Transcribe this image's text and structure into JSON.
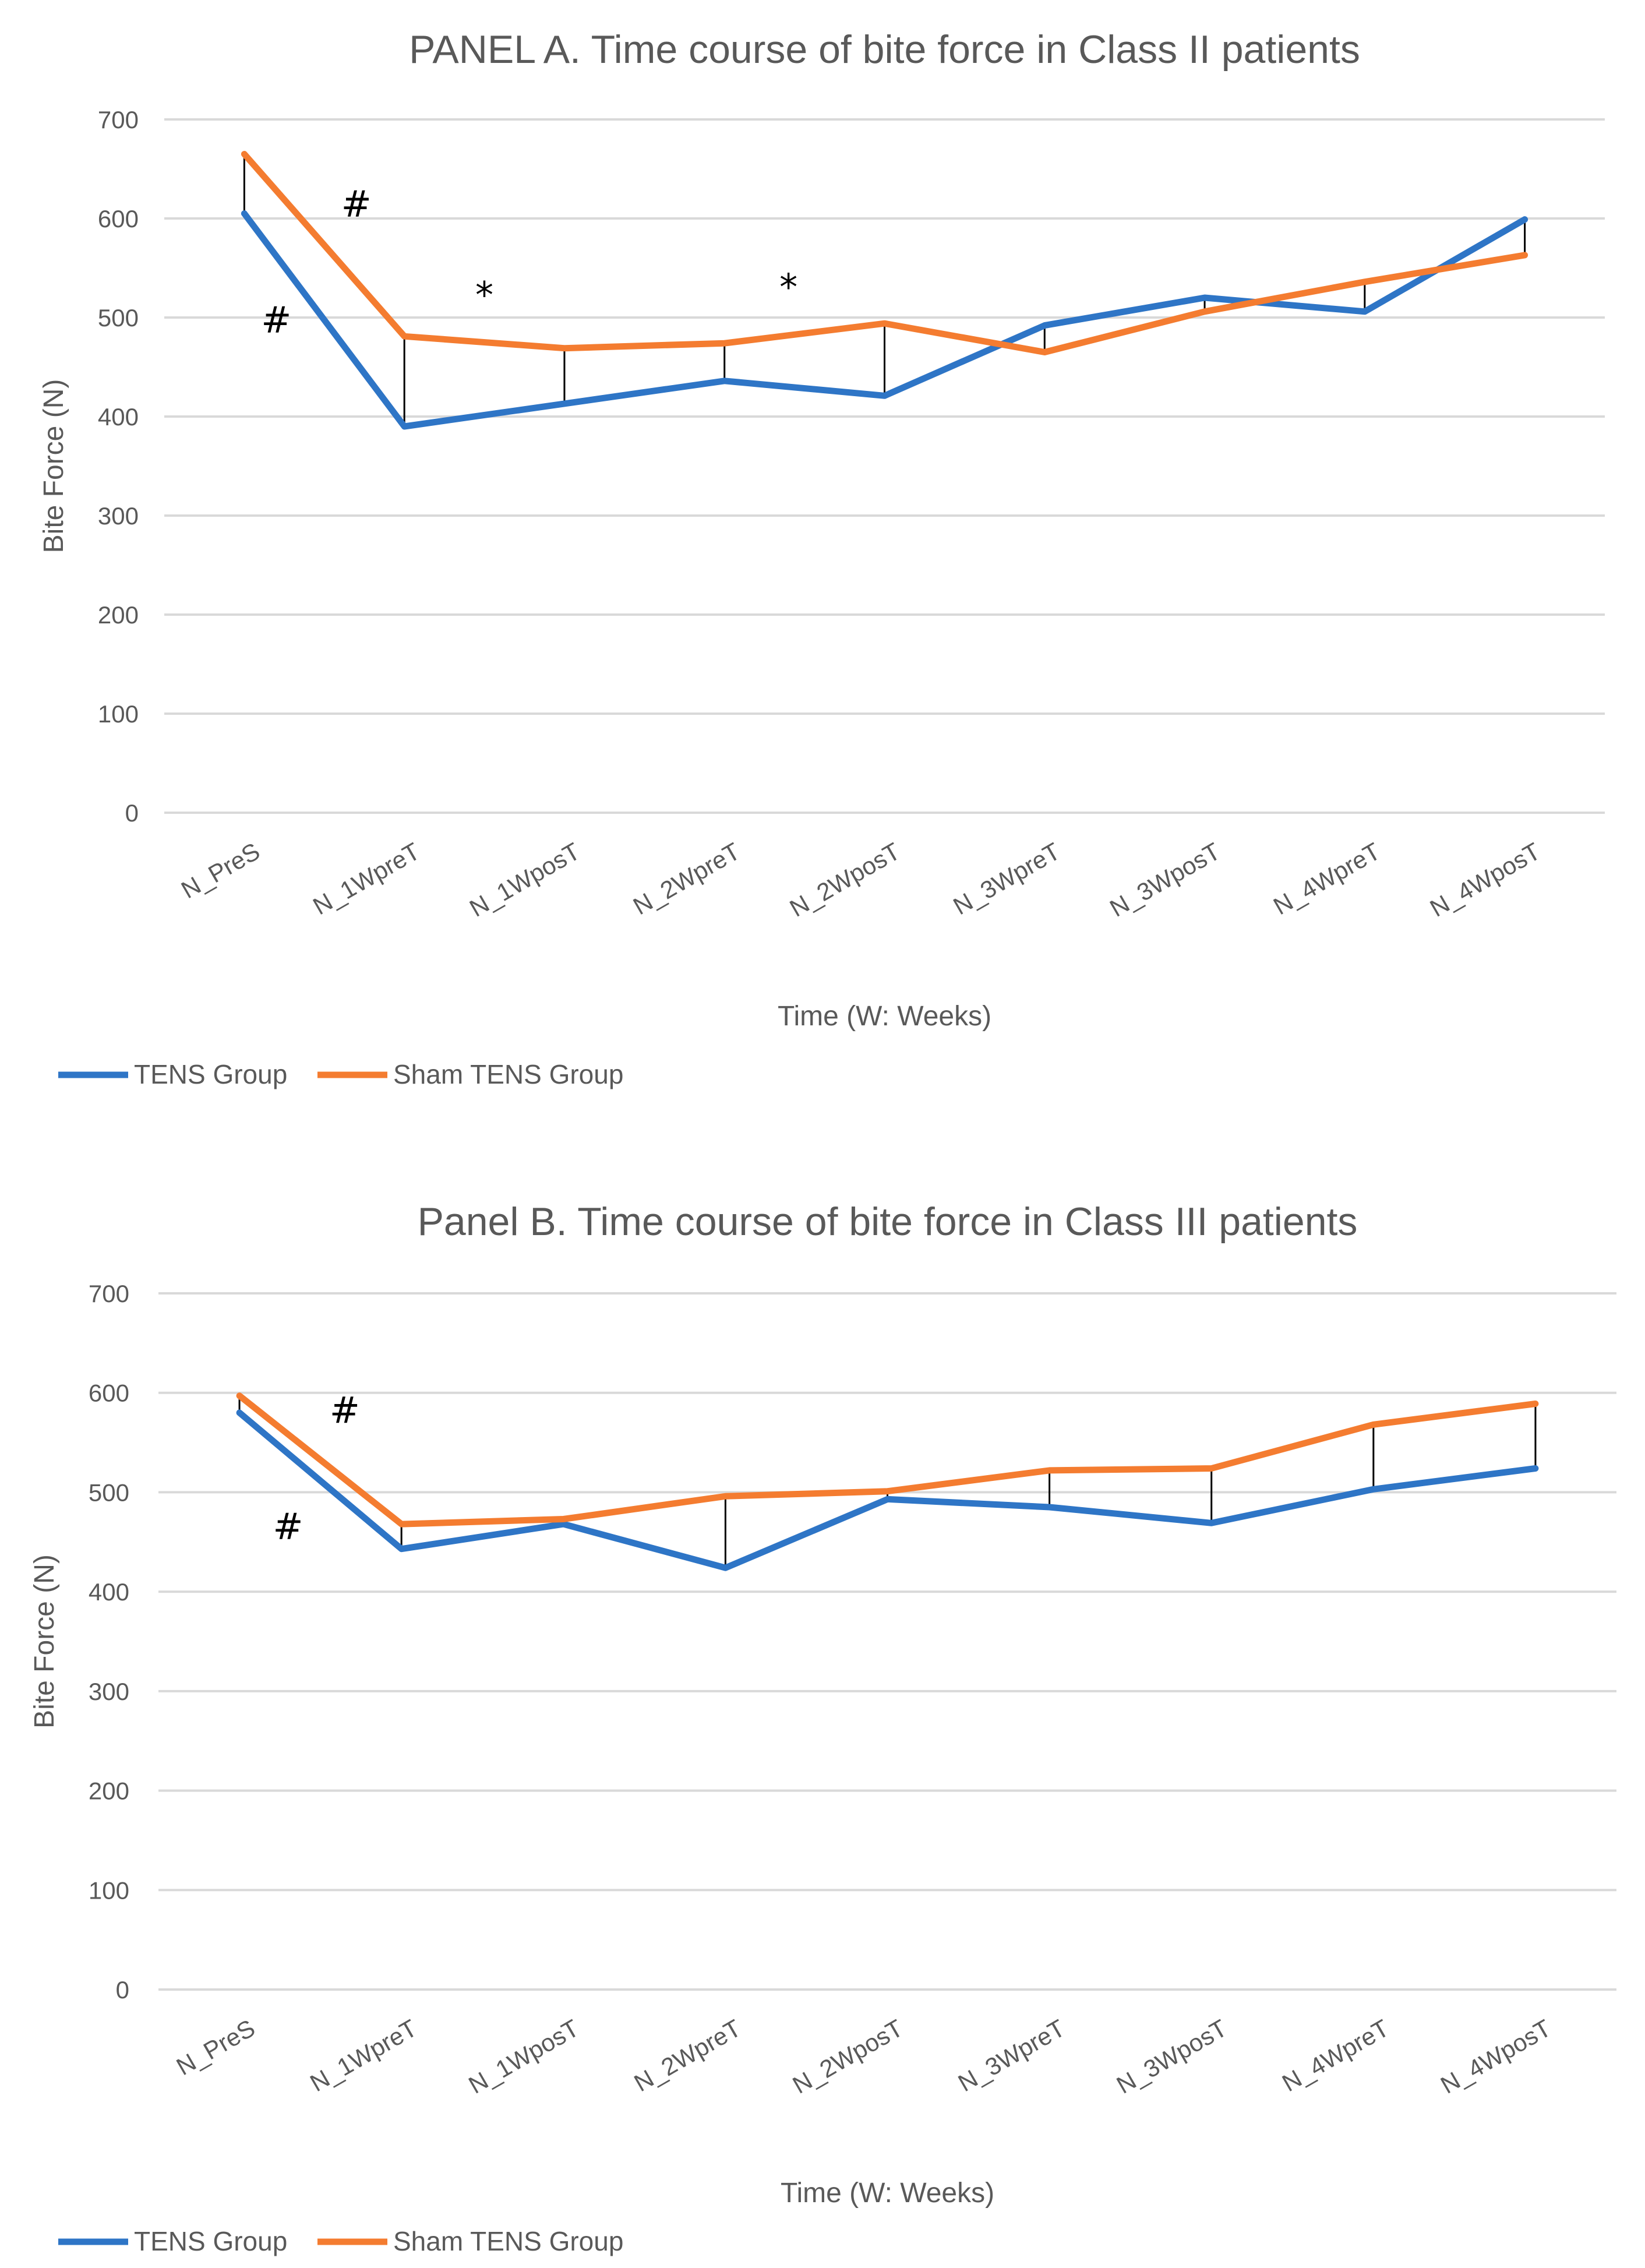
{
  "chart_data": [
    {
      "type": "line",
      "title": "PANEL A. Time course of bite force in Class II patients",
      "xlabel": "Time (W: Weeks)",
      "ylabel": "Bite Force (N)",
      "ylim": [
        0,
        700
      ],
      "yticks": [
        0,
        100,
        200,
        300,
        400,
        500,
        600,
        700
      ],
      "grid": true,
      "legend_position": "bottom-left",
      "categories": [
        "N_PreS",
        "N_1WpreT",
        "N_1WposT",
        "N_2WpreT",
        "N_2WposT",
        "N_3WpreT",
        "N_3WposT",
        "N_4WpreT",
        "N_4WposT"
      ],
      "series": [
        {
          "name": "TENS Group",
          "color": "#2e75c6",
          "values": [
            605,
            390,
            413,
            436,
            421,
            492,
            520,
            506,
            599
          ]
        },
        {
          "name": "Sham TENS Group",
          "color": "#f47c30",
          "values": [
            665,
            481,
            469,
            474,
            494,
            465,
            506,
            536,
            563
          ]
        }
      ],
      "annotations": [
        {
          "text": "#",
          "x": 0.7,
          "y": 602
        },
        {
          "text": "#",
          "x": 0.2,
          "y": 485
        },
        {
          "text": "*",
          "x": 1.5,
          "y": 510
        },
        {
          "text": "*",
          "x": 3.4,
          "y": 518
        }
      ]
    },
    {
      "type": "line",
      "title": "Panel B. Time course of bite force in Class III  patients",
      "xlabel": "Time (W: Weeks)",
      "ylabel": "Bite Force (N)",
      "ylim": [
        0,
        700
      ],
      "yticks": [
        0,
        100,
        200,
        300,
        400,
        500,
        600,
        700
      ],
      "grid": true,
      "legend_position": "bottom-left",
      "categories": [
        "N_PreS",
        "N_1WpreT",
        "N_1WposT",
        "N_2WpreT",
        "N_2WposT",
        "N_3WpreT",
        "N_3WposT",
        "N_4WpreT",
        "N_4WposT"
      ],
      "series": [
        {
          "name": "TENS Group",
          "color": "#2e75c6",
          "values": [
            580,
            443,
            468,
            424,
            493,
            485,
            469,
            503,
            524
          ]
        },
        {
          "name": "Sham TENS Group",
          "color": "#f47c30",
          "values": [
            597,
            468,
            473,
            496,
            501,
            522,
            524,
            568,
            589
          ]
        }
      ],
      "annotations": [
        {
          "text": "#",
          "x": 0.65,
          "y": 570
        },
        {
          "text": "#",
          "x": 0.3,
          "y": 453
        }
      ]
    }
  ]
}
